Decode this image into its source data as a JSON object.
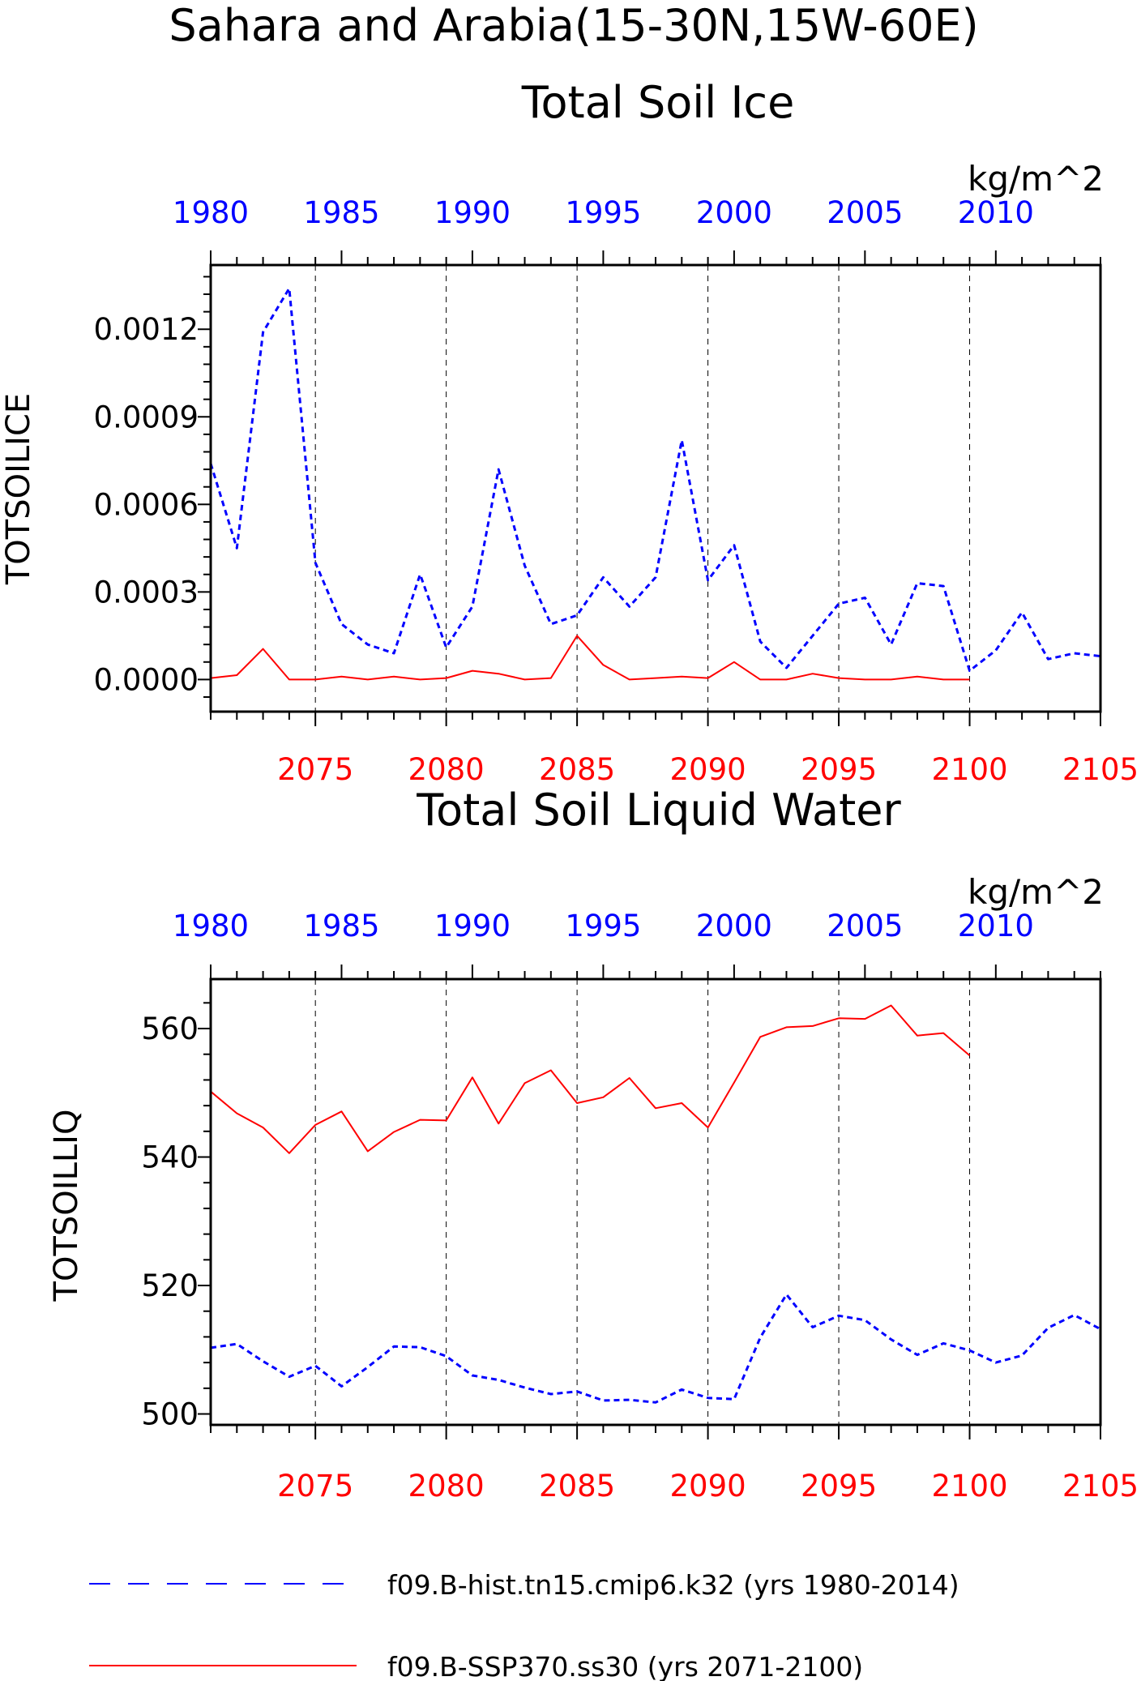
{
  "title_line1": "Sahara and Arabia(15-30N,15W-60E)",
  "colors": {
    "hist": "#0000ff",
    "ssp": "#ff0000",
    "axis": "#000000",
    "grid": "#000000"
  },
  "legend": [
    {
      "label": "f09.B-hist.tn15.cmip6.k32 (yrs 1980-2014)",
      "color": "#0000ff",
      "style": "dashed"
    },
    {
      "label": "f09.B-SSP370.ss30 (yrs 2071-2100)",
      "color": "#ff0000",
      "style": "solid"
    }
  ],
  "chart_data": [
    {
      "type": "line",
      "title": "Total Soil Ice",
      "units": "kg/m^2",
      "ylabel": "TOTSOILICE",
      "ylim": [
        -0.00011,
        0.00142
      ],
      "yticks": [
        "0.0000",
        "0.0003",
        "0.0006",
        "0.0009",
        "0.0012"
      ],
      "ytick_values": [
        0,
        0.0003,
        0.0006,
        0.0009,
        0.0012
      ],
      "top_axis": {
        "range": [
          1980,
          2014
        ],
        "ticks": [
          "1980",
          "1985",
          "1990",
          "1995",
          "2000",
          "2005",
          "2010"
        ],
        "color": "#0000ff"
      },
      "bottom_axis": {
        "range": [
          2071,
          2105
        ],
        "ticks": [
          "2075",
          "2080",
          "2085",
          "2090",
          "2095",
          "2100",
          "2105"
        ],
        "color": "#ff0000"
      },
      "grid": "vertical dashed at bottom-axis ticks",
      "series": [
        {
          "name": "f09.B-hist.tn15.cmip6.k32 (yrs 1980-2014)",
          "color": "#0000ff",
          "style": "dashed",
          "x": [
            1980,
            1981,
            1982,
            1983,
            1984,
            1985,
            1986,
            1987,
            1988,
            1989,
            1990,
            1991,
            1992,
            1993,
            1994,
            1995,
            1996,
            1997,
            1998,
            1999,
            2000,
            2001,
            2002,
            2003,
            2004,
            2005,
            2006,
            2007,
            2008,
            2009,
            2010,
            2011,
            2012,
            2013,
            2014
          ],
          "values": [
            0.00074,
            0.00045,
            0.00119,
            0.00134,
            0.0004,
            0.00019,
            0.00012,
            9e-05,
            0.00036,
            0.00011,
            0.00025,
            0.00072,
            0.00039,
            0.00019,
            0.00022,
            0.00035,
            0.00025,
            0.00035,
            0.00082,
            0.00034,
            0.00046,
            0.00013,
            4e-05,
            0.00015,
            0.00026,
            0.00028,
            0.00012,
            0.00033,
            0.00032,
            3e-05,
            0.0001,
            0.00023,
            7e-05,
            9e-05,
            8e-05
          ]
        },
        {
          "name": "f09.B-SSP370.ss30 (yrs 2071-2100)",
          "color": "#ff0000",
          "style": "solid",
          "x": [
            2071,
            2072,
            2073,
            2074,
            2075,
            2076,
            2077,
            2078,
            2079,
            2080,
            2081,
            2082,
            2083,
            2084,
            2085,
            2086,
            2087,
            2088,
            2089,
            2090,
            2091,
            2092,
            2093,
            2094,
            2095,
            2096,
            2097,
            2098,
            2099,
            2100
          ],
          "values": [
            5e-06,
            1.5e-05,
            0.000105,
            0.0,
            0.0,
            1e-05,
            0.0,
            1e-05,
            0.0,
            5e-06,
            3e-05,
            2e-05,
            0.0,
            5e-06,
            0.00015,
            5e-05,
            0.0,
            5e-06,
            1e-05,
            5e-06,
            6e-05,
            0.0,
            0.0,
            2e-05,
            5e-06,
            0.0,
            0.0,
            1e-05,
            0.0,
            0.0
          ]
        }
      ]
    },
    {
      "type": "line",
      "title": "Total Soil Liquid Water",
      "units": "kg/m^2",
      "ylabel": "TOTSOILLIQ",
      "ylim": [
        498.3,
        567.7
      ],
      "yticks": [
        "500",
        "520",
        "540",
        "560"
      ],
      "ytick_values": [
        500,
        520,
        540,
        560
      ],
      "top_axis": {
        "range": [
          1980,
          2014
        ],
        "ticks": [
          "1980",
          "1985",
          "1990",
          "1995",
          "2000",
          "2005",
          "2010"
        ],
        "color": "#0000ff"
      },
      "bottom_axis": {
        "range": [
          2071,
          2105
        ],
        "ticks": [
          "2075",
          "2080",
          "2085",
          "2090",
          "2095",
          "2100",
          "2105"
        ],
        "color": "#ff0000"
      },
      "grid": "vertical dashed at bottom-axis ticks",
      "series": [
        {
          "name": "f09.B-hist.tn15.cmip6.k32 (yrs 1980-2014)",
          "color": "#0000ff",
          "style": "dashed",
          "x": [
            1980,
            1981,
            1982,
            1983,
            1984,
            1985,
            1986,
            1987,
            1988,
            1989,
            1990,
            1991,
            1992,
            1993,
            1994,
            1995,
            1996,
            1997,
            1998,
            1999,
            2000,
            2001,
            2002,
            2003,
            2004,
            2005,
            2006,
            2007,
            2008,
            2009,
            2010,
            2011,
            2012,
            2013,
            2014
          ],
          "values": [
            510.3,
            510.9,
            508.2,
            505.8,
            507.5,
            504.3,
            507.3,
            510.5,
            510.4,
            509.0,
            506.0,
            505.3,
            504.1,
            503.1,
            503.5,
            502.1,
            502.2,
            501.8,
            503.8,
            502.5,
            502.3,
            511.9,
            518.6,
            513.5,
            515.3,
            514.6,
            511.6,
            509.2,
            511.0,
            509.9,
            508.0,
            509.1,
            513.4,
            515.4,
            513.2
          ]
        },
        {
          "name": "f09.B-SSP370.ss30 (yrs 2071-2100)",
          "color": "#ff0000",
          "style": "solid",
          "x": [
            2071,
            2072,
            2073,
            2074,
            2075,
            2076,
            2077,
            2078,
            2079,
            2080,
            2081,
            2082,
            2083,
            2084,
            2085,
            2086,
            2087,
            2088,
            2089,
            2090,
            2091,
            2092,
            2093,
            2094,
            2095,
            2096,
            2097,
            2098,
            2099,
            2100
          ],
          "values": [
            550.2,
            546.8,
            544.6,
            540.6,
            545.0,
            547.1,
            540.9,
            543.9,
            545.8,
            545.7,
            552.4,
            545.2,
            551.5,
            553.5,
            548.4,
            549.3,
            552.3,
            547.6,
            548.4,
            544.6,
            551.6,
            558.7,
            560.2,
            560.4,
            561.6,
            561.5,
            563.6,
            558.9,
            559.3,
            555.8
          ]
        }
      ]
    }
  ]
}
